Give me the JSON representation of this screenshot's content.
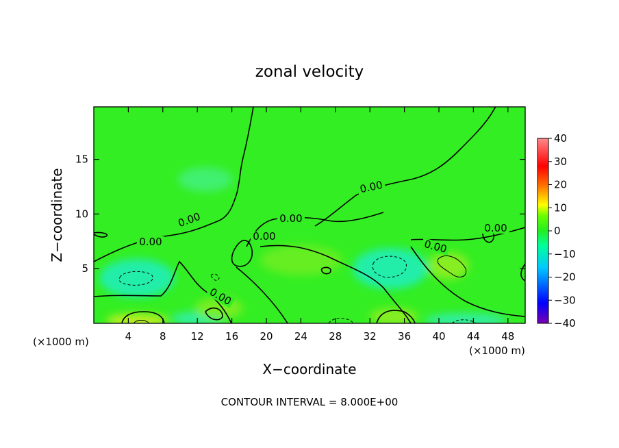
{
  "chart_data": {
    "type": "heatmap",
    "title": "zonal velocity",
    "xlabel": "X−coordinate",
    "ylabel": "Z−coordinate",
    "x_unit_left": "(×1000 m)",
    "x_unit_right": "(×1000 m)",
    "x_ticks": [
      4,
      8,
      12,
      16,
      20,
      24,
      28,
      32,
      36,
      40,
      44,
      48
    ],
    "y_ticks": [
      5,
      10,
      15
    ],
    "xlim": [
      0,
      50
    ],
    "ylim": [
      0,
      19.8
    ],
    "colorbar": {
      "ticks": [
        40,
        30,
        20,
        10,
        0,
        -10,
        -20,
        -30,
        -40
      ],
      "tick_labels": [
        "40",
        "30",
        "20",
        "10",
        "0",
        "−10",
        "−20",
        "−30",
        "−40"
      ],
      "range": [
        -40,
        40
      ],
      "colors": [
        "#7a00b0",
        "#0000ff",
        "#00c8ff",
        "#00ff9a",
        "#22ee22",
        "#66ff00",
        "#ffff00",
        "#ff7700",
        "#ff0000",
        "#ff8a8a"
      ]
    },
    "contour_interval_text": "CONTOUR INTERVAL = 8.000E+00",
    "contour_labels": [
      "0.00",
      "0.00",
      "0.00",
      "0.00",
      "0.00",
      "0.00",
      "0.00",
      "0.00"
    ],
    "field_description_values": {
      "background": 0,
      "negative_cells_x_z_value": [
        [
          5,
          4.5,
          -10
        ],
        [
          33.5,
          5.2,
          -10
        ],
        [
          14,
          0.5,
          -8
        ],
        [
          43,
          0.3,
          -8
        ],
        [
          22,
          1.5,
          -5
        ]
      ],
      "positive_cells_x_z_value": [
        [
          5,
          0.3,
          12
        ],
        [
          41.5,
          5.5,
          8
        ],
        [
          14,
          1.2,
          8
        ],
        [
          36,
          0.5,
          6
        ],
        [
          26,
          4.5,
          6
        ]
      ]
    }
  }
}
